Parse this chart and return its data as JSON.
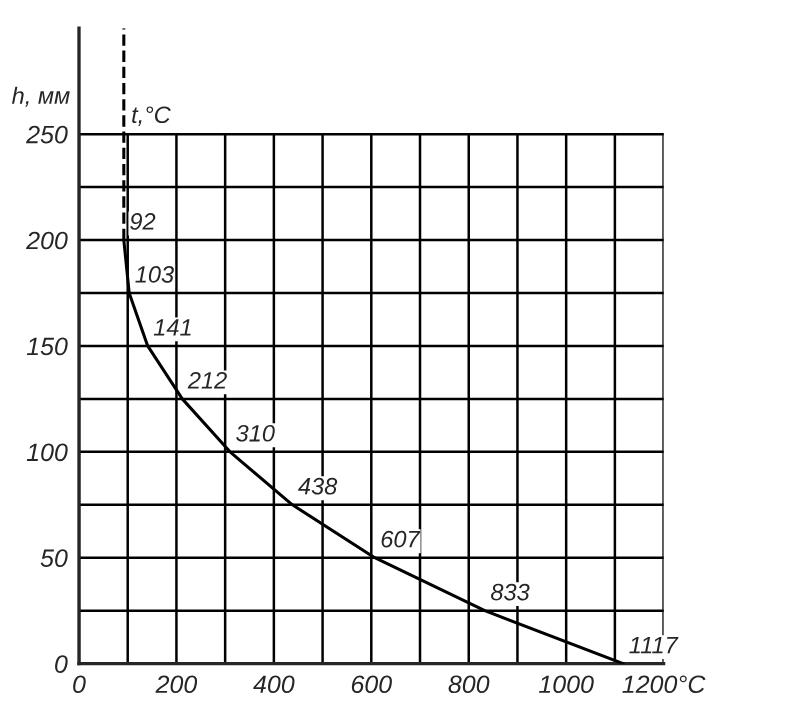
{
  "chart_data": {
    "type": "line",
    "ylabel": "h, мм",
    "series": [
      {
        "color": "#000000",
        "x": [
          92,
          103,
          141,
          212,
          310,
          438,
          607,
          833,
          1117
        ],
        "values": [
          200,
          175,
          150,
          125,
          100,
          75,
          50,
          25,
          0
        ]
      }
    ],
    "annotations": [
      {
        "text": "92",
        "x": 92,
        "y": 200
      },
      {
        "text": "103",
        "x": 103,
        "y": 175
      },
      {
        "text": "141",
        "x": 141,
        "y": 150
      },
      {
        "text": "212",
        "x": 212,
        "y": 125
      },
      {
        "text": "310",
        "x": 310,
        "y": 100
      },
      {
        "text": "438",
        "x": 438,
        "y": 75
      },
      {
        "text": "607",
        "x": 607,
        "y": 50
      },
      {
        "text": "833",
        "x": 833,
        "y": 25
      },
      {
        "text": "1117",
        "x": 1117,
        "y": 0
      }
    ],
    "marker": "none",
    "line_style": "solid",
    "xlim": [
      0,
      1200
    ],
    "ylim": [
      0,
      300
    ],
    "xticks": [
      0,
      {
        "value": 100,
        "label": null
      },
      200,
      {
        "value": 300,
        "label": null
      },
      400,
      {
        "value": 500,
        "label": null
      },
      600,
      {
        "value": 700,
        "label": null
      },
      800,
      {
        "value": 900,
        "label": null
      },
      1000,
      {
        "value": 1100,
        "label": null
      },
      {
        "value": 1200,
        "label": "1200°C"
      }
    ],
    "yticks": [
      0,
      {
        "value": 25,
        "label": null
      },
      50,
      {
        "value": 75,
        "label": null
      },
      100,
      {
        "value": 125,
        "label": null
      },
      150,
      {
        "value": 175,
        "label": null
      },
      200,
      {
        "value": 225,
        "label": null
      },
      250
    ],
    "grid": true,
    "ref_lines": [
      {
        "axis": "x",
        "value": 92,
        "label": "t,°C",
        "color": "#000000",
        "line_style": "dashed"
      }
    ]
  }
}
